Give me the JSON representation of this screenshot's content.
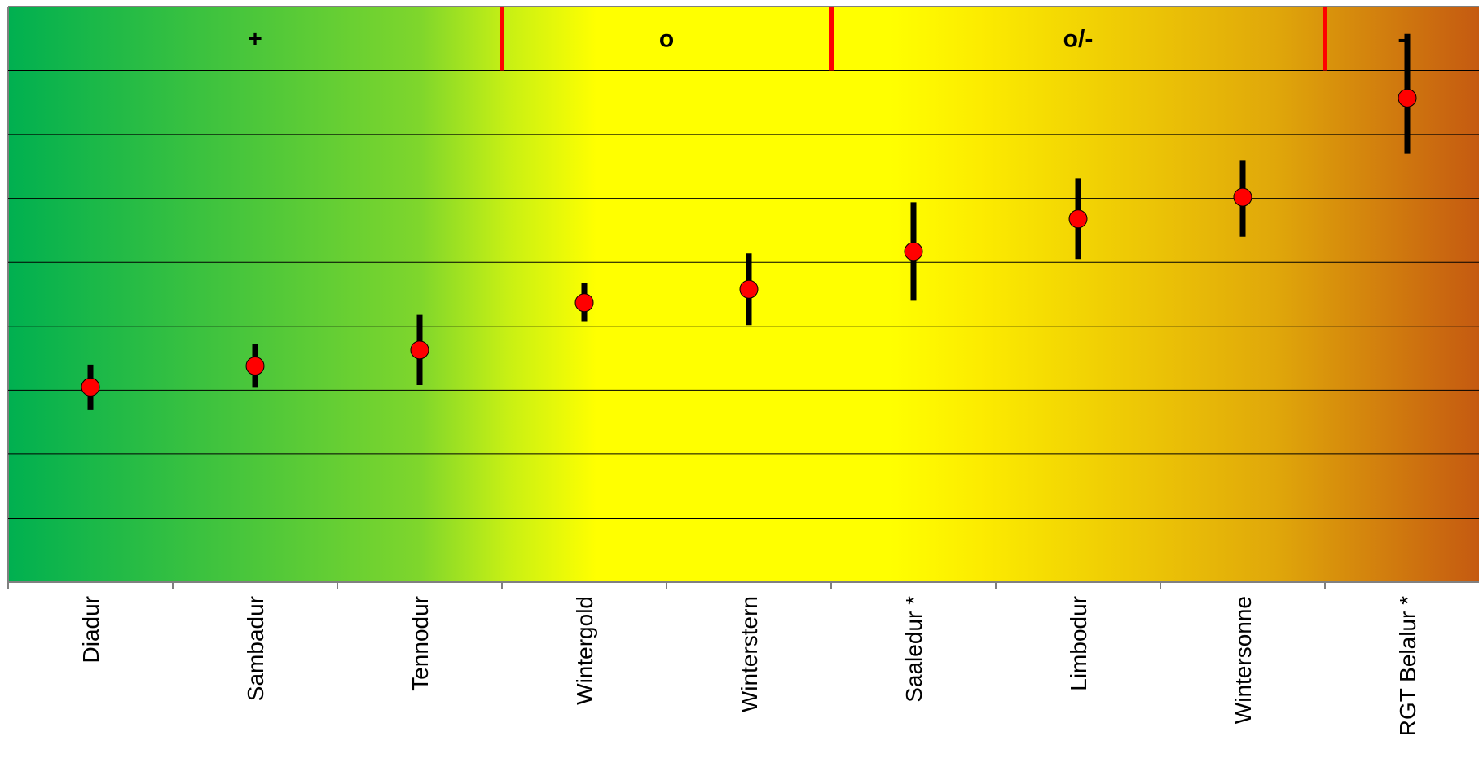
{
  "chart_data": {
    "type": "scatter",
    "title": "",
    "xlabel": "",
    "ylabel": "",
    "categories": [
      "Diadur",
      "Sambadur",
      "Tennodur",
      "Wintergold",
      "Winterstern",
      "Saaledur *",
      "Limbodur",
      "Wintersonne",
      "RGT Belalur *"
    ],
    "ylim": [
      0,
      9
    ],
    "y_ticks_labeled": false,
    "grid": true,
    "series": [
      {
        "values": [
          3.05,
          3.38,
          3.63,
          4.37,
          4.58,
          5.17,
          5.68,
          6.02,
          7.57
        ],
        "error_low": [
          2.7,
          3.05,
          3.08,
          4.08,
          4.02,
          4.4,
          5.05,
          5.4,
          6.7
        ],
        "error_high": [
          3.4,
          3.72,
          4.18,
          4.68,
          5.14,
          5.94,
          6.31,
          6.59,
          8.57
        ]
      }
    ],
    "bands": [
      {
        "label": "+",
        "from": 0.5,
        "to": 3.5
      },
      {
        "label": "o",
        "from": 3.5,
        "to": 5.5
      },
      {
        "label": "o/-",
        "from": 5.5,
        "to": 8.5
      },
      {
        "label": "-",
        "from": 8.5,
        "to": 9.5
      }
    ],
    "colors": {
      "green": "#00b050",
      "yellow": "#ffff00",
      "orange": "#e0a000",
      "brown": "#c55a11",
      "marker": "#ff0000",
      "band_divider": "#ff0000",
      "error_bar": "#000000"
    }
  }
}
